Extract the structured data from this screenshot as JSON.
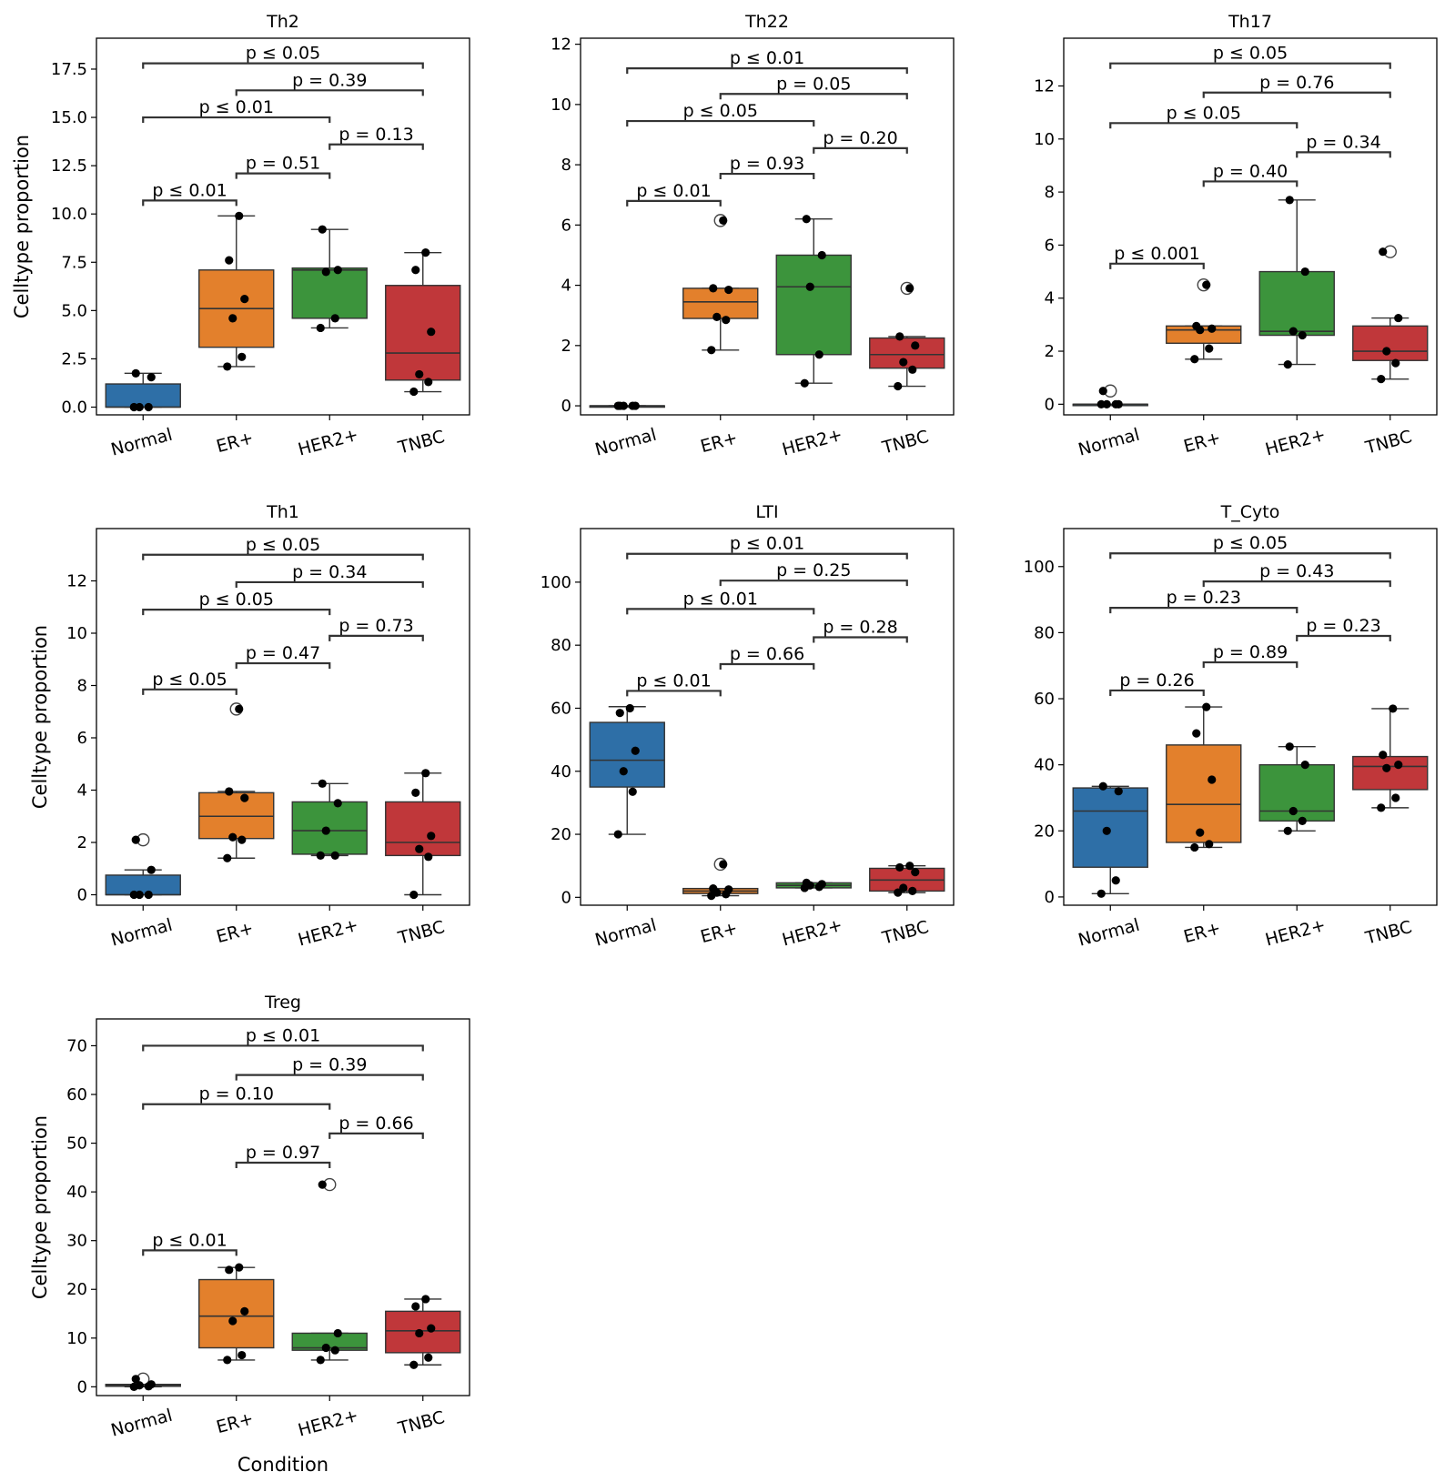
{
  "figure": {
    "shared_xlabel": "Condition",
    "ylabel": "Celltype proportion",
    "categories": [
      "Normal",
      "ER+",
      "HER2+",
      "TNBC"
    ],
    "colors": {
      "Normal": "#2e6fa7",
      "ER+": "#e3802c",
      "HER2+": "#3c943c",
      "TNBC": "#c0373a"
    }
  },
  "chart_data": [
    {
      "type": "box",
      "title": "Th2",
      "ylabel": "Celltype proportion",
      "xlabel": "",
      "categories": [
        "Normal",
        "ER+",
        "HER2+",
        "TNBC"
      ],
      "ylim": [
        -0.4,
        19.1
      ],
      "yticks": [
        0.0,
        2.5,
        5.0,
        7.5,
        10.0,
        12.5,
        15.0,
        17.5
      ],
      "ytick_labels": [
        "0.0",
        "2.5",
        "5.0",
        "7.5",
        "10.0",
        "12.5",
        "15.0",
        "17.5"
      ],
      "boxes": [
        {
          "category": "Normal",
          "q1": 0.0,
          "median": 0.0,
          "q3": 1.2,
          "whisker_low": 0.0,
          "whisker_high": 1.75,
          "points": [
            0.0,
            0.0,
            0.0,
            1.55,
            1.75
          ],
          "outliers": []
        },
        {
          "category": "ER+",
          "q1": 3.1,
          "median": 5.1,
          "q3": 7.1,
          "whisker_low": 2.1,
          "whisker_high": 9.9,
          "points": [
            2.1,
            2.6,
            4.6,
            5.6,
            7.6,
            9.9
          ],
          "outliers": []
        },
        {
          "category": "HER2+",
          "q1": 4.6,
          "median": 7.1,
          "q3": 7.2,
          "whisker_low": 4.1,
          "whisker_high": 9.2,
          "points": [
            4.1,
            4.6,
            7.0,
            7.1,
            9.2
          ],
          "outliers": []
        },
        {
          "category": "TNBC",
          "q1": 1.4,
          "median": 2.8,
          "q3": 6.3,
          "whisker_low": 0.8,
          "whisker_high": 8.0,
          "points": [
            0.8,
            1.3,
            1.7,
            3.9,
            7.1,
            8.0
          ],
          "outliers": []
        }
      ],
      "annotations": [
        {
          "from": 0,
          "to": 3,
          "y": 17.8,
          "label": "p ≤ 0.05"
        },
        {
          "from": 1,
          "to": 3,
          "y": 16.4,
          "label": "p = 0.39"
        },
        {
          "from": 0,
          "to": 2,
          "y": 15.0,
          "label": "p ≤ 0.01"
        },
        {
          "from": 2,
          "to": 3,
          "y": 13.6,
          "label": "p = 0.13"
        },
        {
          "from": 1,
          "to": 2,
          "y": 12.1,
          "label": "p = 0.51"
        },
        {
          "from": 0,
          "to": 1,
          "y": 10.7,
          "label": "p ≤ 0.01"
        }
      ]
    },
    {
      "type": "box",
      "title": "Th22",
      "ylabel": "",
      "xlabel": "",
      "categories": [
        "Normal",
        "ER+",
        "HER2+",
        "TNBC"
      ],
      "ylim": [
        -0.3,
        12.2
      ],
      "yticks": [
        0,
        2,
        4,
        6,
        8,
        10,
        12
      ],
      "ytick_labels": [
        "0",
        "2",
        "4",
        "6",
        "8",
        "10",
        "12"
      ],
      "boxes": [
        {
          "category": "Normal",
          "q1": 0.0,
          "median": 0.0,
          "q3": 0.0,
          "whisker_low": 0.0,
          "whisker_high": 0.0,
          "points": [
            0.0,
            0.0,
            0.0,
            0.0,
            0.0
          ],
          "outliers": []
        },
        {
          "category": "ER+",
          "q1": 2.9,
          "median": 3.45,
          "q3": 3.9,
          "whisker_low": 1.85,
          "whisker_high": 3.9,
          "points": [
            1.85,
            2.85,
            2.95,
            3.85,
            3.9,
            6.15
          ],
          "outliers": [
            6.15
          ]
        },
        {
          "category": "HER2+",
          "q1": 1.7,
          "median": 3.95,
          "q3": 5.0,
          "whisker_low": 0.75,
          "whisker_high": 6.2,
          "points": [
            0.75,
            1.7,
            3.95,
            5.0,
            6.2
          ],
          "outliers": []
        },
        {
          "category": "TNBC",
          "q1": 1.25,
          "median": 1.7,
          "q3": 2.25,
          "whisker_low": 0.65,
          "whisker_high": 2.3,
          "points": [
            0.65,
            1.2,
            1.45,
            2.0,
            2.3,
            3.9
          ],
          "outliers": [
            3.9
          ]
        }
      ],
      "annotations": [
        {
          "from": 0,
          "to": 3,
          "y": 11.2,
          "label": "p ≤ 0.01"
        },
        {
          "from": 1,
          "to": 3,
          "y": 10.35,
          "label": "p = 0.05"
        },
        {
          "from": 0,
          "to": 2,
          "y": 9.45,
          "label": "p ≤ 0.05"
        },
        {
          "from": 2,
          "to": 3,
          "y": 8.55,
          "label": "p = 0.20"
        },
        {
          "from": 1,
          "to": 2,
          "y": 7.7,
          "label": "p = 0.93"
        },
        {
          "from": 0,
          "to": 1,
          "y": 6.8,
          "label": "p ≤ 0.01"
        }
      ]
    },
    {
      "type": "box",
      "title": "Th17",
      "ylabel": "",
      "xlabel": "",
      "categories": [
        "Normal",
        "ER+",
        "HER2+",
        "TNBC"
      ],
      "ylim": [
        -0.4,
        13.8
      ],
      "yticks": [
        0,
        2,
        4,
        6,
        8,
        10,
        12
      ],
      "ytick_labels": [
        "0",
        "2",
        "4",
        "6",
        "8",
        "10",
        "12"
      ],
      "boxes": [
        {
          "category": "Normal",
          "q1": 0.0,
          "median": 0.0,
          "q3": 0.0,
          "whisker_low": 0.0,
          "whisker_high": 0.0,
          "points": [
            0.0,
            0.0,
            0.0,
            0.0,
            0.5
          ],
          "outliers": [
            0.5
          ]
        },
        {
          "category": "ER+",
          "q1": 2.3,
          "median": 2.8,
          "q3": 2.95,
          "whisker_low": 1.7,
          "whisker_high": 2.95,
          "points": [
            1.7,
            2.1,
            2.8,
            2.85,
            2.95,
            4.5
          ],
          "outliers": [
            4.5
          ]
        },
        {
          "category": "HER2+",
          "q1": 2.6,
          "median": 2.75,
          "q3": 5.0,
          "whisker_low": 1.5,
          "whisker_high": 7.7,
          "points": [
            1.5,
            2.6,
            2.75,
            5.0,
            7.7
          ],
          "outliers": []
        },
        {
          "category": "TNBC",
          "q1": 1.65,
          "median": 2.0,
          "q3": 2.95,
          "whisker_low": 0.95,
          "whisker_high": 3.25,
          "points": [
            0.95,
            1.55,
            2.0,
            3.25,
            5.75
          ],
          "outliers": [
            5.75
          ]
        }
      ],
      "annotations": [
        {
          "from": 0,
          "to": 3,
          "y": 12.85,
          "label": "p ≤ 0.05"
        },
        {
          "from": 1,
          "to": 3,
          "y": 11.75,
          "label": "p = 0.76"
        },
        {
          "from": 0,
          "to": 2,
          "y": 10.6,
          "label": "p ≤ 0.05"
        },
        {
          "from": 2,
          "to": 3,
          "y": 9.5,
          "label": "p = 0.34"
        },
        {
          "from": 1,
          "to": 2,
          "y": 8.4,
          "label": "p = 0.40"
        },
        {
          "from": 0,
          "to": 1,
          "y": 5.3,
          "label": "p ≤ 0.001"
        }
      ]
    },
    {
      "type": "box",
      "title": "Th1",
      "ylabel": "Celltype proportion",
      "xlabel": "",
      "categories": [
        "Normal",
        "ER+",
        "HER2+",
        "TNBC"
      ],
      "ylim": [
        -0.4,
        14.0
      ],
      "yticks": [
        0,
        2,
        4,
        6,
        8,
        10,
        12
      ],
      "ytick_labels": [
        "0",
        "2",
        "4",
        "6",
        "8",
        "10",
        "12"
      ],
      "boxes": [
        {
          "category": "Normal",
          "q1": 0.0,
          "median": 0.0,
          "q3": 0.75,
          "whisker_low": 0.0,
          "whisker_high": 0.95,
          "points": [
            0.0,
            0.0,
            0.0,
            0.95,
            2.1
          ],
          "outliers": [
            2.1
          ]
        },
        {
          "category": "ER+",
          "q1": 2.15,
          "median": 3.0,
          "q3": 3.9,
          "whisker_low": 1.4,
          "whisker_high": 3.95,
          "points": [
            1.4,
            2.1,
            2.2,
            3.7,
            3.95,
            7.1
          ],
          "outliers": [
            7.1
          ]
        },
        {
          "category": "HER2+",
          "q1": 1.55,
          "median": 2.45,
          "q3": 3.55,
          "whisker_low": 1.5,
          "whisker_high": 4.25,
          "points": [
            1.5,
            1.5,
            2.45,
            3.5,
            4.25
          ],
          "outliers": []
        },
        {
          "category": "TNBC",
          "q1": 1.5,
          "median": 2.0,
          "q3": 3.55,
          "whisker_low": 0.0,
          "whisker_high": 4.65,
          "points": [
            0.0,
            1.45,
            1.75,
            2.25,
            3.9,
            4.65
          ],
          "outliers": []
        }
      ],
      "annotations": [
        {
          "from": 0,
          "to": 3,
          "y": 13.0,
          "label": "p ≤ 0.05"
        },
        {
          "from": 1,
          "to": 3,
          "y": 11.95,
          "label": "p = 0.34"
        },
        {
          "from": 0,
          "to": 2,
          "y": 10.9,
          "label": "p ≤ 0.05"
        },
        {
          "from": 2,
          "to": 3,
          "y": 9.9,
          "label": "p = 0.73"
        },
        {
          "from": 1,
          "to": 2,
          "y": 8.85,
          "label": "p = 0.47"
        },
        {
          "from": 0,
          "to": 1,
          "y": 7.85,
          "label": "p ≤ 0.05"
        }
      ]
    },
    {
      "type": "box",
      "title": "LTI",
      "ylabel": "",
      "xlabel": "",
      "categories": [
        "Normal",
        "ER+",
        "HER2+",
        "TNBC"
      ],
      "ylim": [
        -2.5,
        117.0
      ],
      "yticks": [
        0,
        20,
        40,
        60,
        80,
        100
      ],
      "ytick_labels": [
        "0",
        "20",
        "40",
        "60",
        "80",
        "100"
      ],
      "boxes": [
        {
          "category": "Normal",
          "q1": 35.0,
          "median": 43.5,
          "q3": 55.5,
          "whisker_low": 20.0,
          "whisker_high": 60.5,
          "points": [
            20.0,
            33.5,
            40.0,
            46.5,
            58.5,
            60.0
          ],
          "outliers": []
        },
        {
          "category": "ER+",
          "q1": 1.2,
          "median": 2.0,
          "q3": 2.8,
          "whisker_low": 0.5,
          "whisker_high": 2.8,
          "points": [
            0.5,
            1.0,
            1.5,
            2.5,
            2.8,
            10.5
          ],
          "outliers": [
            10.5
          ]
        },
        {
          "category": "HER2+",
          "q1": 3.0,
          "median": 3.8,
          "q3": 4.6,
          "whisker_low": 3.0,
          "whisker_high": 4.6,
          "points": [
            3.0,
            3.3,
            3.8,
            4.2,
            4.6
          ],
          "outliers": []
        },
        {
          "category": "TNBC",
          "q1": 2.0,
          "median": 5.5,
          "q3": 9.2,
          "whisker_low": 1.5,
          "whisker_high": 10.0,
          "points": [
            1.5,
            2.0,
            3.0,
            8.0,
            9.5,
            10.0
          ],
          "outliers": []
        }
      ],
      "annotations": [
        {
          "from": 0,
          "to": 3,
          "y": 109.0,
          "label": "p ≤ 0.01"
        },
        {
          "from": 1,
          "to": 3,
          "y": 100.5,
          "label": "p = 0.25"
        },
        {
          "from": 0,
          "to": 2,
          "y": 91.5,
          "label": "p ≤ 0.01"
        },
        {
          "from": 2,
          "to": 3,
          "y": 82.5,
          "label": "p = 0.28"
        },
        {
          "from": 1,
          "to": 2,
          "y": 74.0,
          "label": "p = 0.66"
        },
        {
          "from": 0,
          "to": 1,
          "y": 65.5,
          "label": "p ≤ 0.01"
        }
      ]
    },
    {
      "type": "box",
      "title": "T_Cyto",
      "ylabel": "",
      "xlabel": "",
      "categories": [
        "Normal",
        "ER+",
        "HER2+",
        "TNBC"
      ],
      "ylim": [
        -2.5,
        111.5
      ],
      "yticks": [
        0,
        20,
        40,
        60,
        80,
        100
      ],
      "ytick_labels": [
        "0",
        "20",
        "40",
        "60",
        "80",
        "100"
      ],
      "boxes": [
        {
          "category": "Normal",
          "q1": 9.0,
          "median": 26.0,
          "q3": 33.0,
          "whisker_low": 1.0,
          "whisker_high": 33.5,
          "points": [
            1.0,
            5.0,
            20.0,
            32.0,
            33.5
          ],
          "outliers": []
        },
        {
          "category": "ER+",
          "q1": 16.5,
          "median": 28.0,
          "q3": 46.0,
          "whisker_low": 15.0,
          "whisker_high": 57.5,
          "points": [
            15.0,
            16.0,
            19.5,
            35.5,
            49.5,
            57.5
          ],
          "outliers": []
        },
        {
          "category": "HER2+",
          "q1": 23.0,
          "median": 26.0,
          "q3": 40.0,
          "whisker_low": 20.0,
          "whisker_high": 45.5,
          "points": [
            20.0,
            23.0,
            26.0,
            40.0,
            45.5
          ],
          "outliers": []
        },
        {
          "category": "TNBC",
          "q1": 32.5,
          "median": 39.5,
          "q3": 42.5,
          "whisker_low": 27.0,
          "whisker_high": 57.0,
          "points": [
            27.0,
            30.0,
            39.0,
            40.0,
            43.0,
            57.0
          ],
          "outliers": []
        }
      ],
      "annotations": [
        {
          "from": 0,
          "to": 3,
          "y": 104.0,
          "label": "p ≤ 0.05"
        },
        {
          "from": 1,
          "to": 3,
          "y": 95.5,
          "label": "p = 0.43"
        },
        {
          "from": 0,
          "to": 2,
          "y": 87.5,
          "label": "p = 0.23"
        },
        {
          "from": 2,
          "to": 3,
          "y": 79.0,
          "label": "p = 0.23"
        },
        {
          "from": 1,
          "to": 2,
          "y": 71.0,
          "label": "p = 0.89"
        },
        {
          "from": 0,
          "to": 1,
          "y": 62.5,
          "label": "p = 0.26"
        }
      ]
    },
    {
      "type": "box",
      "title": "Treg",
      "ylabel": "Celltype proportion",
      "xlabel": "Condition",
      "categories": [
        "Normal",
        "ER+",
        "HER2+",
        "TNBC"
      ],
      "ylim": [
        -1.8,
        75.5
      ],
      "yticks": [
        0,
        10,
        20,
        30,
        40,
        50,
        60,
        70
      ],
      "ytick_labels": [
        "0",
        "10",
        "20",
        "30",
        "40",
        "50",
        "60",
        "70"
      ],
      "boxes": [
        {
          "category": "Normal",
          "q1": 0.1,
          "median": 0.3,
          "q3": 0.5,
          "whisker_low": 0.0,
          "whisker_high": 0.5,
          "points": [
            0.0,
            0.1,
            0.3,
            0.5,
            1.6
          ],
          "outliers": [
            1.6
          ]
        },
        {
          "category": "ER+",
          "q1": 8.0,
          "median": 14.5,
          "q3": 22.0,
          "whisker_low": 5.5,
          "whisker_high": 24.5,
          "points": [
            5.5,
            6.5,
            13.5,
            15.5,
            24.0,
            24.5
          ],
          "outliers": []
        },
        {
          "category": "HER2+",
          "q1": 7.5,
          "median": 8.0,
          "q3": 11.0,
          "whisker_low": 5.5,
          "whisker_high": 11.0,
          "points": [
            5.5,
            7.5,
            8.0,
            11.0,
            41.5
          ],
          "outliers": [
            41.5
          ]
        },
        {
          "category": "TNBC",
          "q1": 7.0,
          "median": 11.5,
          "q3": 15.5,
          "whisker_low": 4.5,
          "whisker_high": 18.0,
          "points": [
            4.5,
            6.0,
            11.0,
            12.0,
            16.5,
            18.0
          ],
          "outliers": []
        }
      ],
      "annotations": [
        {
          "from": 0,
          "to": 3,
          "y": 70.0,
          "label": "p ≤ 0.01"
        },
        {
          "from": 1,
          "to": 3,
          "y": 64.0,
          "label": "p = 0.39"
        },
        {
          "from": 0,
          "to": 2,
          "y": 58.0,
          "label": "p = 0.10"
        },
        {
          "from": 2,
          "to": 3,
          "y": 52.0,
          "label": "p = 0.66"
        },
        {
          "from": 1,
          "to": 2,
          "y": 46.0,
          "label": "p = 0.97"
        },
        {
          "from": 0,
          "to": 1,
          "y": 28.0,
          "label": "p ≤ 0.01"
        }
      ]
    }
  ]
}
